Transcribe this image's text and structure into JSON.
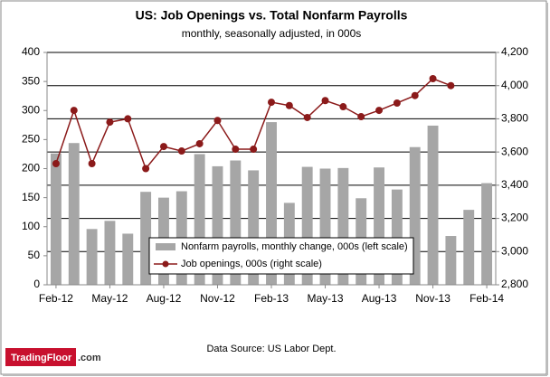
{
  "chart_data": {
    "type": "bar_line",
    "title": "US: Job Openings vs. Total Nonfarm Payrolls",
    "subtitle": "monthly, seasonally adjusted, in 000s",
    "source": "Data Source: US Labor Dept.",
    "logo_name": "TradingFloor",
    "logo_suffix": ".com",
    "categories": [
      "Feb-12",
      null,
      null,
      "May-12",
      null,
      null,
      "Aug-12",
      null,
      null,
      "Nov-12",
      null,
      null,
      "Feb-13",
      null,
      null,
      "May-13",
      null,
      null,
      "Aug-13",
      null,
      null,
      "Nov-13",
      null,
      null,
      "Feb-14"
    ],
    "series": [
      {
        "name": "Nonfarm payrolls, monthly change, 000s (left scale)",
        "color": "#a6a6a6",
        "type": "bar",
        "values": [
          226,
          244,
          96,
          110,
          88,
          160,
          150,
          161,
          225,
          204,
          214,
          197,
          280,
          141,
          203,
          200,
          201,
          149,
          202,
          164,
          237,
          274,
          84,
          129,
          175
        ]
      },
      {
        "name": "Job openings, 000s (right scale)",
        "color": "#8b1a1a",
        "type": "line",
        "axis": "y2",
        "values": [
          3530,
          3851,
          3530,
          3780,
          3800,
          3500,
          3633,
          3606,
          3650,
          3790,
          3617,
          3617,
          3900,
          3880,
          3808,
          3910,
          3873,
          3813,
          3851,
          3895,
          3940,
          4042,
          4000,
          null,
          null
        ]
      }
    ],
    "ylim": [
      0,
      400
    ],
    "yticks": [
      0,
      50,
      100,
      150,
      200,
      250,
      300,
      350,
      400
    ],
    "y2lim": [
      2800,
      4200
    ],
    "y2ticks": [
      {
        "value": 2800,
        "label": "2,800"
      },
      {
        "value": 3000,
        "label": "3,000"
      },
      {
        "value": 3200,
        "label": "3,200"
      },
      {
        "value": 3400,
        "label": "3,400"
      },
      {
        "value": 3600,
        "label": "3,600"
      },
      {
        "value": 3800,
        "label": "3,800"
      },
      {
        "value": 4000,
        "label": "4,000"
      },
      {
        "value": 4200,
        "label": "4,200"
      }
    ],
    "grid": "y2"
  }
}
